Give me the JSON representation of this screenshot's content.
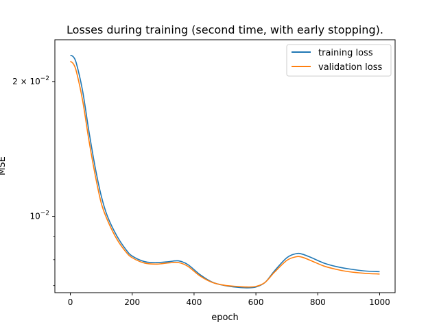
{
  "chart_data": {
    "type": "line",
    "title": "Losses during training (second time, with early stopping).",
    "xlabel": "epoch",
    "ylabel": "MSE",
    "xlim": [
      -50,
      1050
    ],
    "ylim": [
      0.00675,
      0.0248
    ],
    "yscale": "log",
    "grid": false,
    "legend_position": "top-right",
    "x_ticks": [
      0,
      200,
      400,
      600,
      800,
      1000
    ],
    "x_tick_labels": [
      "0",
      "200",
      "400",
      "600",
      "800",
      "1000"
    ],
    "y_ticks": [
      0.01,
      0.02
    ],
    "y_tick_labels": [
      {
        "base": "10",
        "exp": "−2",
        "mult": ""
      },
      {
        "base": "10",
        "exp": "−2",
        "mult": "2 × "
      }
    ],
    "y_minor_ticks": [
      0.007,
      0.008,
      0.009
    ],
    "series": [
      {
        "name": "training loss",
        "color": "#1f77b4",
        "x": [
          0,
          10,
          20,
          40,
          60,
          80,
          100,
          120,
          150,
          180,
          200,
          240,
          280,
          320,
          350,
          380,
          420,
          460,
          500,
          540,
          570,
          600,
          630,
          660,
          700,
          730,
          750,
          780,
          820,
          860,
          900,
          950,
          1000
        ],
        "y": [
          0.0229,
          0.0227,
          0.0219,
          0.019,
          0.0155,
          0.0129,
          0.0111,
          0.01,
          0.00905,
          0.00842,
          0.00815,
          0.00792,
          0.00788,
          0.00792,
          0.00795,
          0.0078,
          0.0074,
          0.00712,
          0.007,
          0.00694,
          0.00692,
          0.00695,
          0.00712,
          0.00755,
          0.00808,
          0.00825,
          0.00823,
          0.00808,
          0.00786,
          0.00772,
          0.00763,
          0.00755,
          0.00752
        ]
      },
      {
        "name": "validation loss",
        "color": "#ff7f0e",
        "x": [
          0,
          10,
          20,
          40,
          60,
          80,
          100,
          120,
          150,
          180,
          200,
          240,
          280,
          320,
          350,
          380,
          420,
          460,
          500,
          540,
          570,
          600,
          630,
          660,
          700,
          730,
          750,
          780,
          820,
          860,
          900,
          950,
          1000
        ],
        "y": [
          0.0222,
          0.0219,
          0.021,
          0.0181,
          0.0148,
          0.0124,
          0.0107,
          0.0098,
          0.0089,
          0.00832,
          0.00808,
          0.00786,
          0.00782,
          0.00787,
          0.00788,
          0.00773,
          0.00735,
          0.00711,
          0.00701,
          0.00697,
          0.00695,
          0.00697,
          0.00712,
          0.0075,
          0.00797,
          0.00812,
          0.0081,
          0.00795,
          0.00774,
          0.00761,
          0.00752,
          0.00746,
          0.00743
        ]
      }
    ]
  }
}
